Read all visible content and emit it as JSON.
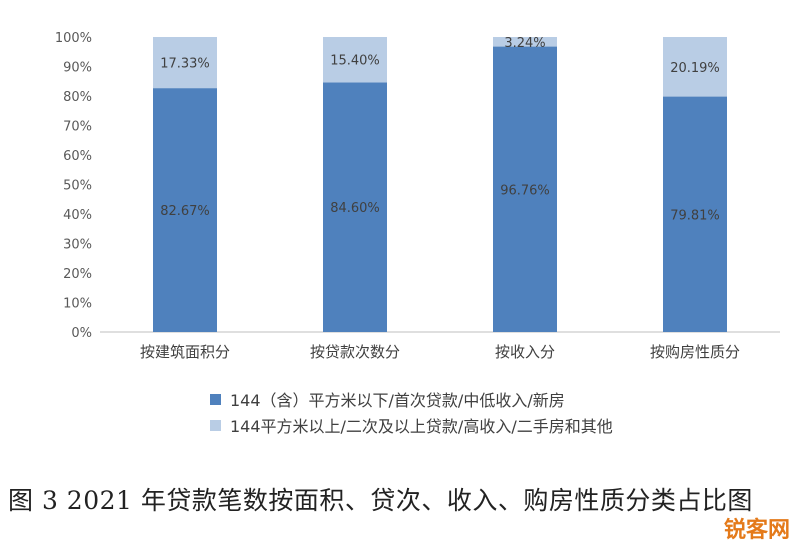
{
  "chart_data": {
    "type": "bar",
    "stacked": true,
    "percent": true,
    "categories": [
      "按建筑面积分",
      "按贷款次数分",
      "按收入分",
      "按购房性质分"
    ],
    "series": [
      {
        "name": "144（含）平方米以下/首次贷款/中低收入/新房",
        "color": "#4f81bd",
        "values": [
          82.67,
          84.6,
          96.76,
          79.81
        ],
        "labels": [
          "82.67%",
          "84.60%",
          "96.76%",
          "79.81%"
        ]
      },
      {
        "name": "144平方米以上/二次及以上贷款/高收入/二手房和其他",
        "color": "#b9cde5",
        "values": [
          17.33,
          15.4,
          3.24,
          20.19
        ],
        "labels": [
          "17.33%",
          "15.40%",
          "3.24%",
          "20.19%"
        ]
      }
    ],
    "ylim": [
      0,
      100
    ],
    "yticks": [
      "0%",
      "10%",
      "20%",
      "30%",
      "40%",
      "50%",
      "60%",
      "70%",
      "80%",
      "90%",
      "100%"
    ],
    "grid": false,
    "legend_position": "bottom"
  },
  "caption": "图 3 2021 年贷款笔数按面积、贷次、收入、购房性质分类占比图",
  "watermark": "锐客网"
}
